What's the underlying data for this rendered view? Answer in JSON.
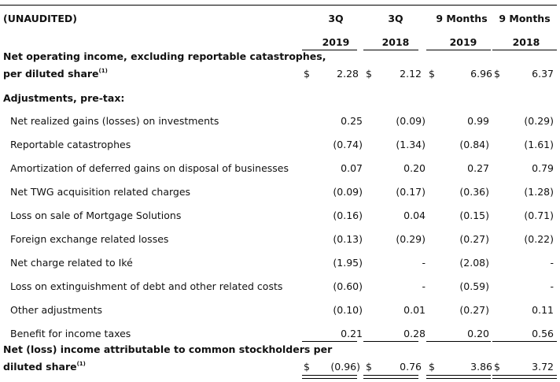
{
  "header": {
    "unaudited": "(UNAUDITED)",
    "cols": [
      {
        "top": "3Q",
        "bottom": "2019"
      },
      {
        "top": "3Q",
        "bottom": "2018"
      },
      {
        "top": "9 Months",
        "bottom": "2019"
      },
      {
        "top": "9 Months",
        "bottom": "2018"
      }
    ]
  },
  "noi": {
    "label_line1": "Net operating income, excluding reportable catastrophes,",
    "label_line2": "per diluted share",
    "footnote": "(1)",
    "dollar": "$",
    "values": [
      "2.28",
      "2.12",
      "6.96",
      "6.37"
    ]
  },
  "adjustments_label": "Adjustments, pre-tax:",
  "rows": [
    {
      "label": "Net realized gains (losses) on investments",
      "values": [
        "0.25",
        "(0.09)",
        "0.99",
        "(0.29)"
      ]
    },
    {
      "label": "Reportable catastrophes",
      "values": [
        "(0.74)",
        "(1.34)",
        "(0.84)",
        "(1.61)"
      ]
    },
    {
      "label": "Amortization of deferred gains on disposal of businesses",
      "values": [
        "0.07",
        "0.20",
        "0.27",
        "0.79"
      ]
    },
    {
      "label": "Net TWG acquisition related charges",
      "values": [
        "(0.09)",
        "(0.17)",
        "(0.36)",
        "(1.28)"
      ]
    },
    {
      "label": "Loss on sale of Mortgage Solutions",
      "values": [
        "(0.16)",
        "0.04",
        "(0.15)",
        "(0.71)"
      ]
    },
    {
      "label": "Foreign exchange related losses",
      "values": [
        "(0.13)",
        "(0.29)",
        "(0.27)",
        "(0.22)"
      ]
    },
    {
      "label": "Net charge related to Iké",
      "values": [
        "(1.95)",
        "-",
        "(2.08)",
        "-"
      ]
    },
    {
      "label": "Loss on extinguishment of debt and other related costs",
      "values": [
        "(0.60)",
        "-",
        "(0.59)",
        "-"
      ]
    },
    {
      "label": "Other adjustments",
      "values": [
        "(0.10)",
        "0.01",
        "(0.27)",
        "0.11"
      ]
    },
    {
      "label": "Benefit for income taxes",
      "values": [
        "0.21",
        "0.28",
        "0.20",
        "0.56"
      ]
    }
  ],
  "net": {
    "label_line1": "Net (loss) income attributable to common stockholders per",
    "label_line2": "diluted share",
    "footnote": "(1)",
    "dollar": "$",
    "values": [
      "(0.96)",
      "0.76",
      "3.86",
      "3.72"
    ]
  }
}
